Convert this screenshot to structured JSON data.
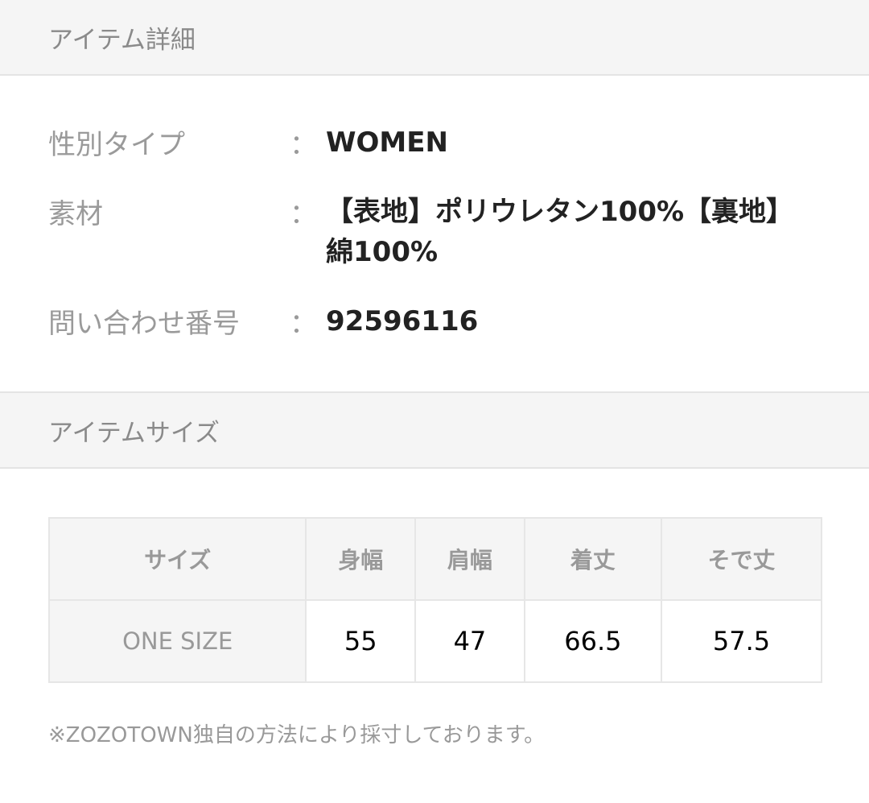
{
  "details": {
    "title": "アイテム詳細",
    "rows": [
      {
        "label": "性別タイプ",
        "value": "WOMEN"
      },
      {
        "label": "素材",
        "value": "【表地】ポリウレタン100%【裏地】綿100%"
      },
      {
        "label": "問い合わせ番号",
        "value": "92596116"
      }
    ],
    "colon": "："
  },
  "size": {
    "title": "アイテムサイズ",
    "headers": [
      "サイズ",
      "身幅",
      "肩幅",
      "着丈",
      "そで丈"
    ],
    "row": [
      "ONE SIZE",
      "55",
      "47",
      "66.5",
      "57.5"
    ],
    "note": "※ZOZOTOWN独自の方法により採寸しております。"
  }
}
